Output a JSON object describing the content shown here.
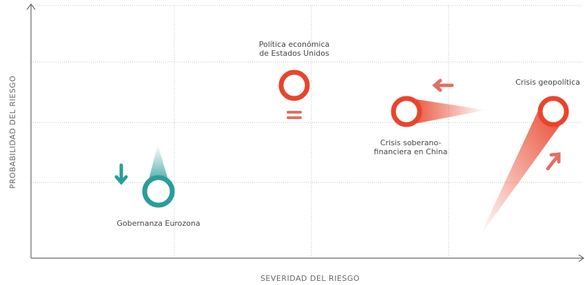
{
  "axes": {
    "y_label": "PROBABILIDAD DEL RIESGO",
    "x_label": "SEVERIDAD DEL RIESGO"
  },
  "nodes": [
    {
      "lines": [
        "Política económica",
        "de Estados Unidos"
      ]
    },
    {
      "lines": [
        "Crisis soberano-",
        "financiera en China"
      ]
    },
    {
      "lines": [
        "Crisis geopolítica"
      ]
    },
    {
      "lines": [
        "Gobernanza Eurozona"
      ]
    }
  ]
}
